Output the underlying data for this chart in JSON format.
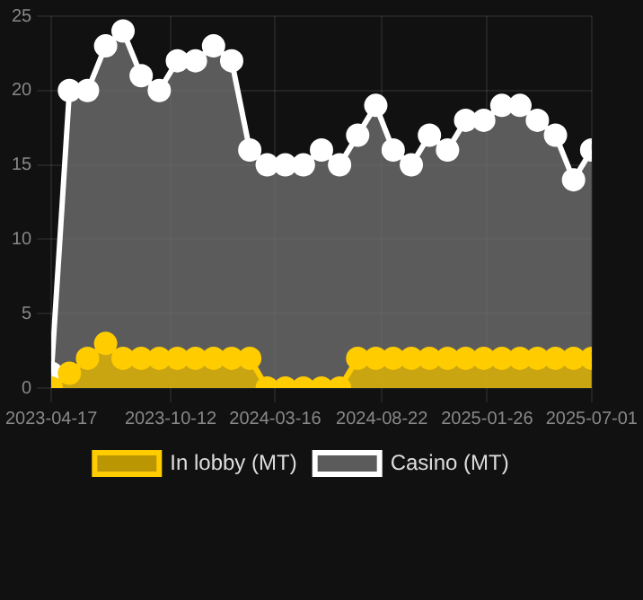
{
  "chart_data": {
    "type": "area",
    "x": [
      "2023-04-17",
      "2023-05-14",
      "2023-06-10",
      "2023-07-07",
      "2023-08-02",
      "2023-08-29",
      "2023-09-25",
      "2023-10-22",
      "2023-11-18",
      "2023-12-15",
      "2024-01-11",
      "2024-02-07",
      "2024-03-04",
      "2024-03-31",
      "2024-04-27",
      "2024-05-24",
      "2024-06-20",
      "2024-07-17",
      "2024-08-13",
      "2024-09-08",
      "2024-10-05",
      "2024-11-01",
      "2024-11-28",
      "2024-12-25",
      "2025-01-21",
      "2025-02-17",
      "2025-03-16",
      "2025-04-11",
      "2025-05-08",
      "2025-06-04",
      "2025-07-01"
    ],
    "series": [
      {
        "name": "In lobby (MT)",
        "color": "#ffcc00",
        "values": [
          0,
          1,
          2,
          3,
          2,
          2,
          2,
          2,
          2,
          2,
          2,
          2,
          0,
          0,
          0,
          0,
          0,
          2,
          2,
          2,
          2,
          2,
          2,
          2,
          2,
          2,
          2,
          2,
          2,
          2,
          2
        ]
      },
      {
        "name": "Casino (MT)",
        "color": "#ffffff",
        "values": [
          1,
          20,
          20,
          23,
          24,
          21,
          20,
          22,
          22,
          23,
          22,
          16,
          15,
          15,
          15,
          16,
          15,
          17,
          19,
          16,
          15,
          17,
          16,
          18,
          18,
          19,
          19,
          18,
          17,
          14,
          16
        ]
      }
    ],
    "xlim": [
      "2023-04-17",
      "2025-07-01"
    ],
    "xticks": [
      "2023-04-17",
      "2023-10-12",
      "2024-03-16",
      "2024-08-22",
      "2025-01-26",
      "2025-07-01"
    ],
    "ylim": [
      0,
      25
    ],
    "yticks": [
      0,
      5,
      10,
      15,
      20,
      25
    ],
    "grid": true,
    "legend": "bottom",
    "marker": "circle"
  }
}
